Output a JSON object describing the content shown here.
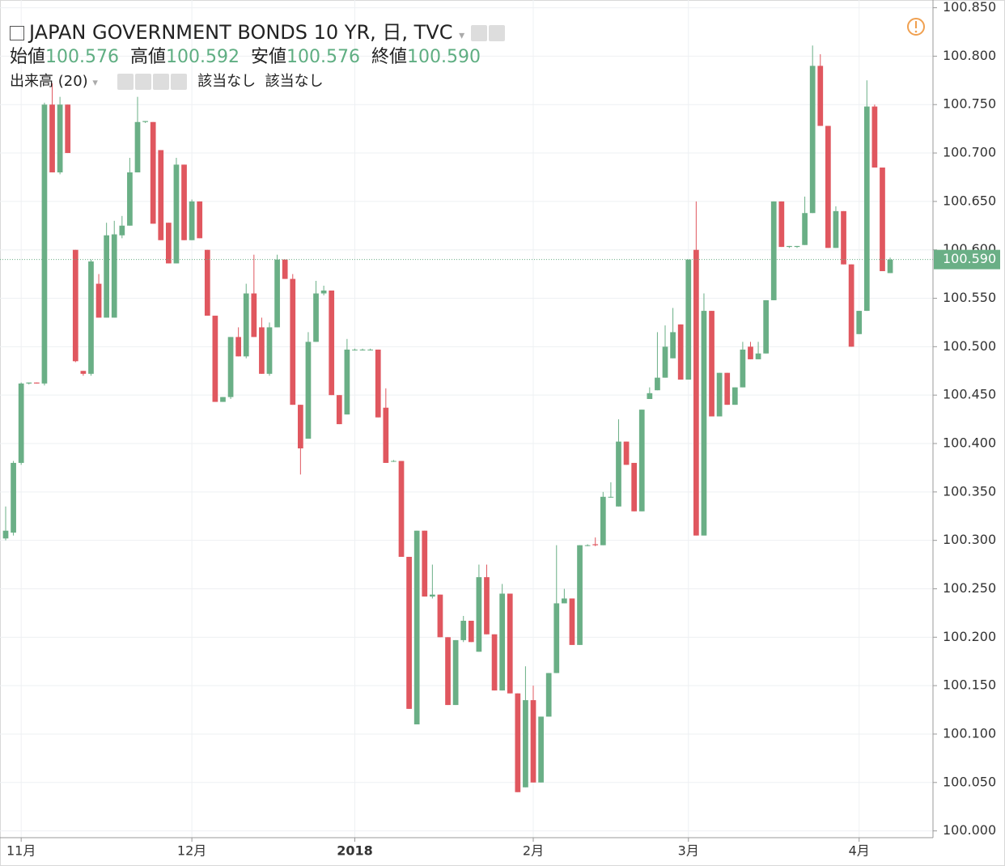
{
  "header": {
    "title": "JAPAN GOVERNMENT BONDS 10 YR, 日, TVC",
    "ohlc": [
      {
        "label": "始値",
        "value": "100.576"
      },
      {
        "label": "高値",
        "value": "100.592"
      },
      {
        "label": "安値",
        "value": "100.576"
      },
      {
        "label": "終値",
        "value": "100.590"
      }
    ],
    "volume": "出来高 (20)",
    "na": [
      "該当なし",
      "該当なし"
    ]
  },
  "chart_data": {
    "type": "candlestick",
    "up_color": "#6aaf86",
    "down_color": "#e0575f",
    "grid": true,
    "open": [
      100.302,
      100.308,
      100.38,
      100.462,
      100.463,
      100.462,
      100.75,
      100.68,
      100.75,
      100.6,
      100.475,
      100.472,
      100.565,
      100.53,
      100.53,
      100.615,
      100.625,
      100.68,
      100.732,
      100.732,
      100.703,
      100.628,
      100.586,
      100.688,
      100.61,
      100.65,
      100.6,
      100.532,
      100.443,
      100.448,
      100.51,
      100.49,
      100.555,
      100.52,
      100.472,
      100.52,
      100.59,
      100.57,
      100.44,
      100.405,
      100.505,
      100.555,
      100.558,
      100.45,
      100.43,
      100.497,
      100.497,
      100.497,
      100.497,
      100.437,
      100.382,
      100.382,
      100.283,
      100.11,
      100.31,
      100.242,
      100.244,
      100.2,
      100.13,
      100.197,
      100.217,
      100.185,
      100.262,
      100.203,
      100.145,
      100.245,
      100.142,
      100.045,
      100.135,
      100.05,
      100.118,
      100.163,
      100.235,
      100.24,
      100.192,
      100.295,
      100.296,
      100.295,
      100.345,
      100.335,
      100.402,
      100.38,
      100.33,
      100.446,
      100.455,
      100.468,
      100.488,
      100.523,
      100.466,
      100.6,
      100.305,
      100.537,
      100.428,
      100.473,
      100.44,
      100.458,
      100.5,
      100.487,
      100.493,
      100.548,
      100.65,
      100.603,
      100.603,
      100.605,
      100.638,
      100.79,
      100.728,
      100.602,
      100.64,
      100.585,
      100.513,
      100.537,
      100.748,
      100.685,
      100.576
    ],
    "high": [
      100.335,
      100.382,
      100.463,
      100.463,
      100.463,
      100.752,
      100.772,
      100.758,
      100.75,
      100.6,
      100.475,
      100.59,
      100.575,
      100.628,
      100.63,
      100.635,
      100.695,
      100.758,
      100.733,
      100.732,
      100.703,
      100.628,
      100.695,
      100.688,
      100.652,
      100.65,
      100.6,
      100.532,
      100.448,
      100.51,
      100.52,
      100.565,
      100.595,
      100.53,
      100.525,
      100.595,
      100.59,
      100.575,
      100.44,
      100.515,
      100.568,
      100.563,
      100.558,
      100.45,
      100.508,
      100.498,
      100.498,
      100.498,
      100.497,
      100.457,
      100.383,
      100.382,
      100.283,
      100.31,
      100.31,
      100.275,
      100.244,
      100.2,
      100.197,
      100.222,
      100.217,
      100.275,
      100.275,
      100.203,
      100.255,
      100.245,
      100.142,
      100.17,
      100.15,
      100.118,
      100.163,
      100.295,
      100.25,
      100.24,
      100.295,
      100.296,
      100.303,
      100.35,
      100.36,
      100.425,
      100.402,
      100.38,
      100.435,
      100.458,
      100.515,
      100.522,
      100.54,
      100.523,
      100.59,
      100.65,
      100.555,
      100.537,
      100.473,
      100.473,
      100.458,
      100.505,
      100.505,
      100.505,
      100.548,
      100.65,
      100.65,
      100.604,
      100.604,
      100.655,
      100.811,
      100.802,
      100.728,
      100.645,
      100.64,
      100.585,
      100.537,
      100.775,
      100.75,
      100.685,
      100.592
    ],
    "low": [
      100.3,
      100.305,
      100.378,
      100.461,
      100.462,
      100.46,
      100.68,
      100.678,
      100.7,
      100.484,
      100.47,
      100.47,
      100.53,
      100.53,
      100.53,
      100.612,
      100.625,
      100.68,
      100.731,
      100.627,
      100.61,
      100.586,
      100.586,
      100.61,
      100.61,
      100.612,
      100.532,
      100.443,
      100.443,
      100.446,
      100.49,
      100.488,
      100.51,
      100.472,
      100.47,
      100.52,
      100.57,
      100.44,
      100.368,
      100.405,
      100.505,
      100.553,
      100.45,
      100.42,
      100.43,
      100.496,
      100.496,
      100.496,
      100.427,
      100.38,
      100.381,
      100.283,
      100.126,
      100.11,
      100.242,
      100.24,
      100.2,
      100.13,
      100.13,
      100.195,
      100.195,
      100.185,
      100.203,
      100.145,
      100.145,
      100.142,
      100.04,
      100.045,
      100.05,
      100.05,
      100.118,
      100.163,
      100.235,
      100.192,
      100.192,
      100.294,
      100.294,
      100.295,
      100.344,
      100.335,
      100.378,
      100.33,
      100.33,
      100.446,
      100.455,
      100.468,
      100.488,
      100.466,
      100.466,
      100.305,
      100.305,
      100.428,
      100.428,
      100.44,
      100.44,
      100.458,
      100.487,
      100.487,
      100.493,
      100.548,
      100.603,
      100.602,
      100.602,
      100.605,
      100.638,
      100.728,
      100.602,
      100.602,
      100.585,
      100.5,
      100.513,
      100.537,
      100.685,
      100.578,
      100.576
    ],
    "close": [
      100.31,
      100.38,
      100.462,
      100.463,
      100.462,
      100.75,
      100.68,
      100.75,
      100.7,
      100.485,
      100.472,
      100.588,
      100.53,
      100.615,
      100.616,
      100.625,
      100.68,
      100.732,
      100.733,
      100.627,
      100.61,
      100.586,
      100.688,
      100.61,
      100.65,
      100.612,
      100.532,
      100.443,
      100.448,
      100.51,
      100.49,
      100.555,
      100.51,
      100.472,
      100.52,
      100.59,
      100.57,
      100.44,
      100.395,
      100.505,
      100.555,
      100.558,
      100.45,
      100.42,
      100.497,
      100.497,
      100.497,
      100.497,
      100.427,
      100.38,
      100.382,
      100.283,
      100.126,
      100.31,
      100.242,
      100.244,
      100.2,
      100.13,
      100.197,
      100.217,
      100.195,
      100.262,
      100.203,
      100.145,
      100.245,
      100.142,
      100.04,
      100.135,
      100.05,
      100.118,
      100.163,
      100.235,
      100.24,
      100.192,
      100.295,
      100.295,
      100.295,
      100.345,
      100.345,
      100.402,
      100.378,
      100.33,
      100.435,
      100.452,
      100.468,
      100.5,
      100.515,
      100.466,
      100.59,
      100.305,
      100.537,
      100.428,
      100.473,
      100.44,
      100.458,
      100.497,
      100.487,
      100.493,
      100.548,
      100.65,
      100.603,
      100.604,
      100.604,
      100.638,
      100.79,
      100.728,
      100.602,
      100.64,
      100.585,
      100.5,
      100.537,
      100.748,
      100.685,
      100.578,
      100.59
    ],
    "xlim": [
      -0.73,
      119.52
    ],
    "xticks": [
      {
        "value": 2,
        "label": "11月"
      },
      {
        "value": 24,
        "label": "12月"
      },
      {
        "value": 45,
        "label": "2018"
      },
      {
        "value": 68,
        "label": "2月"
      },
      {
        "value": 88,
        "label": "3月"
      },
      {
        "value": 110,
        "label": "4月"
      }
    ],
    "ylim": [
      99.993,
      100.858
    ],
    "yticks": [
      {
        "value": 100.0,
        "label": "100.000"
      },
      {
        "value": 100.05,
        "label": "100.050"
      },
      {
        "value": 100.1,
        "label": "100.100"
      },
      {
        "value": 100.15,
        "label": "100.150"
      },
      {
        "value": 100.2,
        "label": "100.200"
      },
      {
        "value": 100.25,
        "label": "100.250"
      },
      {
        "value": 100.3,
        "label": "100.300"
      },
      {
        "value": 100.35,
        "label": "100.350"
      },
      {
        "value": 100.4,
        "label": "100.400"
      },
      {
        "value": 100.45,
        "label": "100.450"
      },
      {
        "value": 100.5,
        "label": "100.500"
      },
      {
        "value": 100.55,
        "label": "100.550"
      },
      {
        "value": 100.6,
        "label": "100.600"
      },
      {
        "value": 100.65,
        "label": "100.650"
      },
      {
        "value": 100.7,
        "label": "100.700"
      },
      {
        "value": 100.75,
        "label": "100.750"
      },
      {
        "value": 100.8,
        "label": "100.800"
      },
      {
        "value": 100.85,
        "label": "100.850"
      }
    ],
    "last": {
      "value": 100.59,
      "label": "100.590",
      "color": "#6aaf86"
    }
  }
}
